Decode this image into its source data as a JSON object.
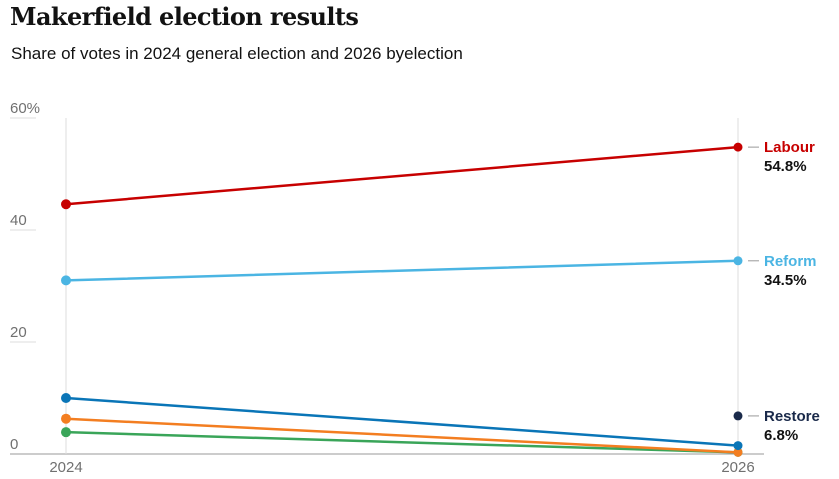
{
  "title": "Makerfield election results",
  "subtitle": "Share of votes in 2024 general election and 2026 byelection",
  "chart_data": {
    "type": "line",
    "x": [
      "2024",
      "2026"
    ],
    "ylim": [
      0,
      60
    ],
    "yticks": [
      "60%",
      "40",
      "20",
      "0"
    ],
    "ytick_values": [
      60,
      40,
      20,
      0
    ],
    "grid": true,
    "series": [
      {
        "name": "Labour",
        "values": [
          44.6,
          54.8
        ],
        "color": "#c70000",
        "label_value": "54.8%"
      },
      {
        "name": "Reform",
        "values": [
          31.0,
          34.5
        ],
        "color": "#4bb5e3",
        "label_value": "34.5%"
      },
      {
        "name": "",
        "values": [
          10.0,
          1.5
        ],
        "color": "#0a75b7"
      },
      {
        "name": "",
        "values": [
          6.3,
          0.3
        ],
        "color": "#f37e21"
      },
      {
        "name": "",
        "values": [
          3.9,
          0.3
        ],
        "color": "#3aa559"
      },
      {
        "name": "Restore",
        "values": [
          null,
          6.8
        ],
        "color": "#1a2a4a",
        "label_value": "6.8%"
      }
    ]
  }
}
